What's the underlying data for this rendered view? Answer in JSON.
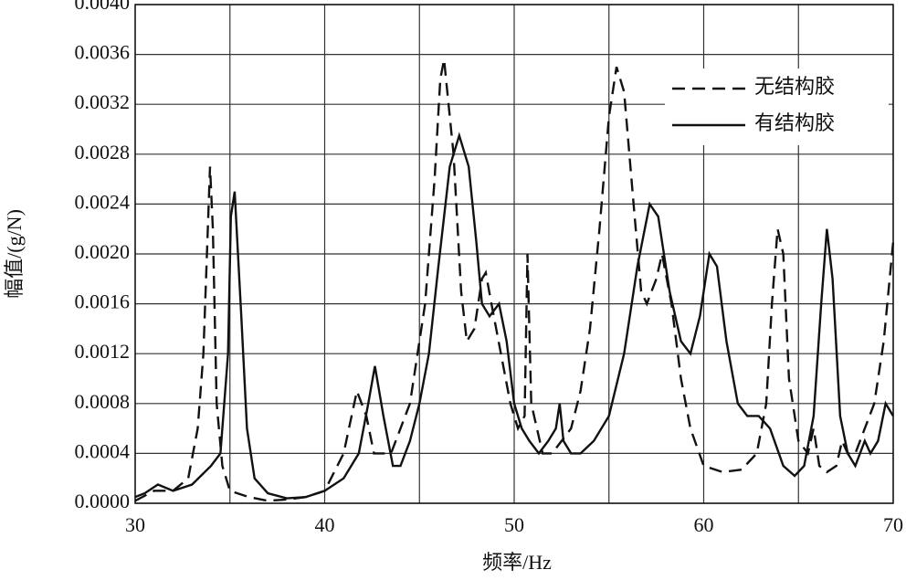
{
  "chart_data": {
    "type": "line",
    "xlabel": "频率/Hz",
    "ylabel": "幅值/(g/N)",
    "xlim": [
      30,
      70
    ],
    "xticks": [
      30,
      40,
      50,
      60,
      70
    ],
    "xgrid": [
      35,
      45,
      55,
      65
    ],
    "ylim": [
      0,
      0.004
    ],
    "yticks": [
      {
        "value": 0,
        "label": "0.0000"
      },
      {
        "value": 0.0004,
        "label": "0.0004"
      },
      {
        "value": 0.0008,
        "label": "0.0008"
      },
      {
        "value": 0.0012,
        "label": "0.0012"
      },
      {
        "value": 0.0016,
        "label": "0.0016"
      },
      {
        "value": 0.002,
        "label": "0.0020"
      },
      {
        "value": 0.0024,
        "label": "0.0024"
      },
      {
        "value": 0.0028,
        "label": "0.0028"
      },
      {
        "value": 0.0032,
        "label": "0.0032"
      },
      {
        "value": 0.0036,
        "label": "0.0036"
      },
      {
        "value": 0.004,
        "label": "0.0040"
      }
    ],
    "grid": true,
    "legend": "upper right",
    "series": [
      {
        "name": "无结构胶",
        "color": "#111111",
        "dash": true,
        "x": [
          30,
          31,
          32,
          32.8,
          33.3,
          33.6,
          33.95,
          34.1,
          34.3,
          34.6,
          35,
          36,
          37,
          38,
          39,
          40,
          41,
          41.7,
          42.2,
          42.6,
          43.5,
          44.5,
          45.3,
          45.8,
          46.1,
          46.3,
          46.8,
          47.2,
          47.5,
          47.9,
          48.3,
          48.5,
          48.8,
          49.3,
          49.8,
          50.2,
          50.55,
          50.7,
          50.9,
          51.5,
          52,
          52.5,
          53,
          53.5,
          54,
          54.5,
          55,
          55.4,
          55.8,
          56.3,
          56.7,
          57,
          57.5,
          57.8,
          58.3,
          58.8,
          59.3,
          60,
          61,
          62,
          62.8,
          63.3,
          63.6,
          63.9,
          64.2,
          64.5,
          65,
          65.5,
          65.8,
          66.1,
          66.5,
          67,
          67.3,
          67.6,
          68,
          68.5,
          69,
          69.5,
          70
        ],
        "values": [
          2e-05,
          0.0001,
          0.0001,
          0.0002,
          0.0006,
          0.0012,
          0.0027,
          0.0022,
          0.0008,
          0.0003,
          0.0001,
          5e-05,
          2e-05,
          3e-05,
          5e-05,
          0.0001,
          0.0004,
          0.0009,
          0.0007,
          0.0004,
          0.0004,
          0.0008,
          0.0016,
          0.0026,
          0.0034,
          0.00356,
          0.0028,
          0.0017,
          0.0013,
          0.0014,
          0.0018,
          0.00185,
          0.0016,
          0.0012,
          0.0008,
          0.0006,
          0.0007,
          0.002,
          0.0008,
          0.0004,
          0.0004,
          0.0005,
          0.0006,
          0.0009,
          0.0014,
          0.0022,
          0.0031,
          0.0035,
          0.0033,
          0.0024,
          0.0017,
          0.0016,
          0.0018,
          0.002,
          0.0016,
          0.001,
          0.0006,
          0.0003,
          0.00025,
          0.00027,
          0.0004,
          0.0008,
          0.0016,
          0.0022,
          0.002,
          0.001,
          0.0005,
          0.0004,
          0.0006,
          0.0003,
          0.00025,
          0.0003,
          0.0005,
          0.0004,
          0.0004,
          0.0006,
          0.0008,
          0.0013,
          0.0021
        ]
      },
      {
        "name": "有结构胶",
        "color": "#111111",
        "dash": false,
        "x": [
          30,
          30.5,
          31.2,
          32,
          33,
          34,
          34.5,
          34.9,
          35.05,
          35.25,
          35.6,
          35.9,
          36.3,
          37,
          38,
          39,
          40,
          41,
          41.8,
          42.3,
          42.65,
          43.1,
          43.6,
          44,
          44.5,
          45,
          45.5,
          46,
          46.6,
          47.1,
          47.6,
          48,
          48.3,
          48.7,
          49.2,
          49.6,
          50,
          50.4,
          50.8,
          51.3,
          51.8,
          52.2,
          52.4,
          52.6,
          53,
          53.5,
          54.2,
          55,
          55.8,
          56.5,
          57.15,
          57.6,
          58.2,
          58.8,
          59.3,
          59.8,
          60.3,
          60.7,
          61.2,
          61.8,
          62.3,
          62.9,
          63.5,
          64.2,
          64.8,
          65.3,
          65.8,
          66.2,
          66.5,
          66.8,
          67.2,
          67.6,
          68,
          68.5,
          68.8,
          69.2,
          69.6,
          70
        ],
        "values": [
          5e-05,
          8e-05,
          0.00015,
          0.0001,
          0.00015,
          0.0003,
          0.0004,
          0.0012,
          0.0023,
          0.0025,
          0.0015,
          0.0006,
          0.0002,
          8e-05,
          4e-05,
          5e-05,
          0.0001,
          0.0002,
          0.0004,
          0.0008,
          0.0011,
          0.0007,
          0.0003,
          0.0003,
          0.0005,
          0.0008,
          0.0012,
          0.0019,
          0.0027,
          0.00295,
          0.0027,
          0.0021,
          0.0016,
          0.0015,
          0.0016,
          0.0013,
          0.0008,
          0.0006,
          0.0005,
          0.0004,
          0.0005,
          0.0006,
          0.0008,
          0.0005,
          0.0004,
          0.0004,
          0.0005,
          0.0007,
          0.0012,
          0.0019,
          0.0024,
          0.0023,
          0.0017,
          0.0013,
          0.0012,
          0.0015,
          0.002,
          0.0019,
          0.0013,
          0.0008,
          0.0007,
          0.0007,
          0.0006,
          0.0003,
          0.00022,
          0.0003,
          0.0007,
          0.0016,
          0.0022,
          0.0018,
          0.0007,
          0.0004,
          0.0003,
          0.0005,
          0.0004,
          0.0005,
          0.0008,
          0.0007
        ]
      }
    ]
  }
}
